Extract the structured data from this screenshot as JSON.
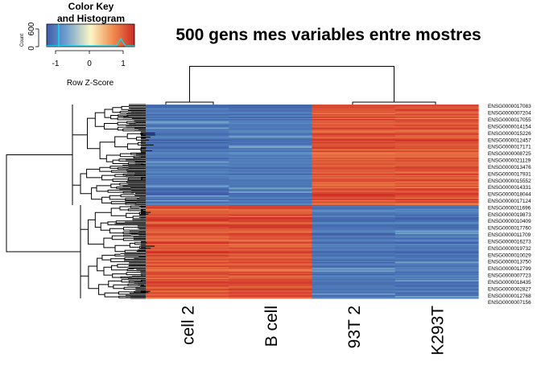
{
  "chart_data": {
    "type": "heatmap",
    "title": "500 gens mes variables entre mostres",
    "columns": [
      "cell 2",
      "B cell",
      "93T 2",
      "K293T"
    ],
    "row_labels": [
      "ENSG0000017083",
      "ENSG0000007204",
      "ENSG0000017055",
      "ENSG0000014154",
      "ENSG0000015226",
      "ENSG0000012457",
      "ENSG0000017171",
      "ENSG0000008725",
      "ENSG0000021129",
      "ENSG0000013476",
      "ENSG0000017931",
      "ENSG0000015552",
      "ENSG0000014331",
      "ENSG0000018044",
      "ENSG0000017124",
      "ENSG0000011696",
      "ENSG0000019873",
      "ENSG0000010409",
      "ENSG0000017760",
      "ENSG0000011709",
      "ENSG0000016273",
      "ENSG0000019732",
      "ENSG0000010029",
      "ENSG0000013750",
      "ENSG0000012799",
      "ENSG0000007723",
      "ENSG0000018435",
      "ENSG0000002827",
      "ENSG0000012768",
      "ENSG0000007156"
    ],
    "n_genes": 500,
    "row_clusters": [
      {
        "name": "",
        "fraction": 0.52,
        "z_by_column": [
          -1.0,
          -1.0,
          1.0,
          1.0
        ]
      },
      {
        "name": "",
        "fraction": 0.48,
        "z_by_column": [
          1.0,
          1.0,
          -1.0,
          -1.0
        ]
      }
    ],
    "color_key": {
      "title_line1": "Color Key",
      "title_line2": "and Histogram",
      "xlabel": "Row Z-Score",
      "ylabel": "Count",
      "y_ticks": [
        "0",
        "600"
      ],
      "x_ticks": [
        "-1",
        "0",
        "1"
      ],
      "range": [
        -1.3,
        1.3
      ],
      "colors": [
        "#3f5ea8",
        "#5f96c8",
        "#fbf6c4",
        "#f08a4c",
        "#cd2b25"
      ],
      "histogram_line_color": "#00ffff"
    }
  }
}
